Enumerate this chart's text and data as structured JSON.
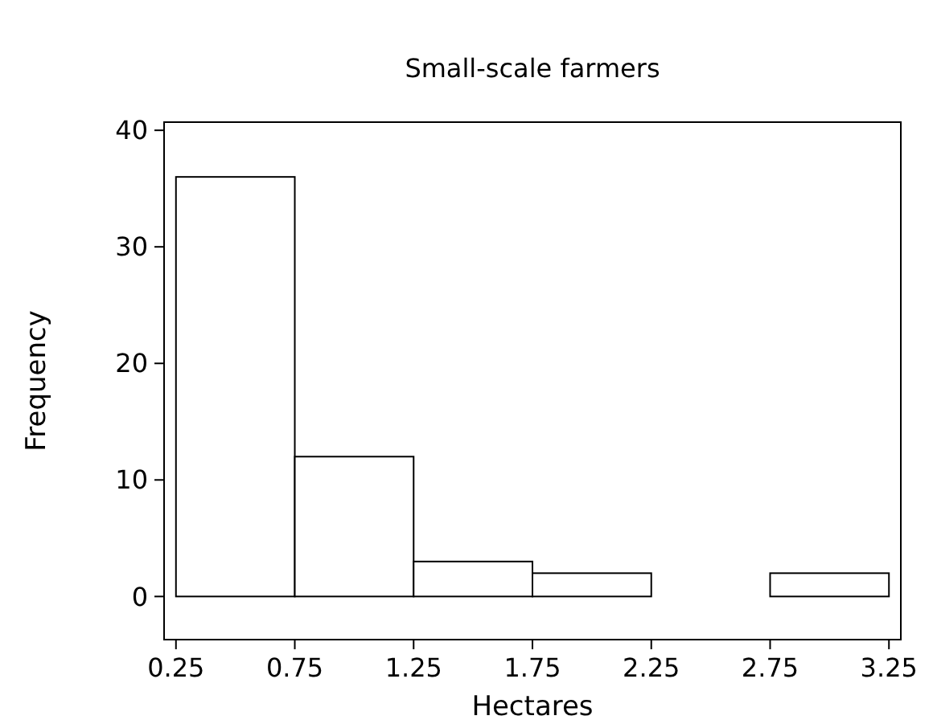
{
  "chart_data": {
    "type": "histogram",
    "title": "Small-scale farmers",
    "xlabel": "Hectares",
    "ylabel": "Frequency",
    "bins": [
      0.25,
      0.75,
      1.25,
      1.75,
      2.25,
      2.75,
      3.25
    ],
    "values": [
      36,
      12,
      3,
      2,
      0,
      2
    ],
    "color": "#ffffff",
    "xlim": [
      0.2,
      3.3
    ],
    "xticks": [
      0.25,
      0.75,
      1.25,
      1.75,
      2.25,
      2.75,
      3.25
    ],
    "ylim": [
      -3.7,
      40.7
    ],
    "yticks": [
      0,
      10,
      20,
      30,
      40
    ],
    "grid": false
  }
}
